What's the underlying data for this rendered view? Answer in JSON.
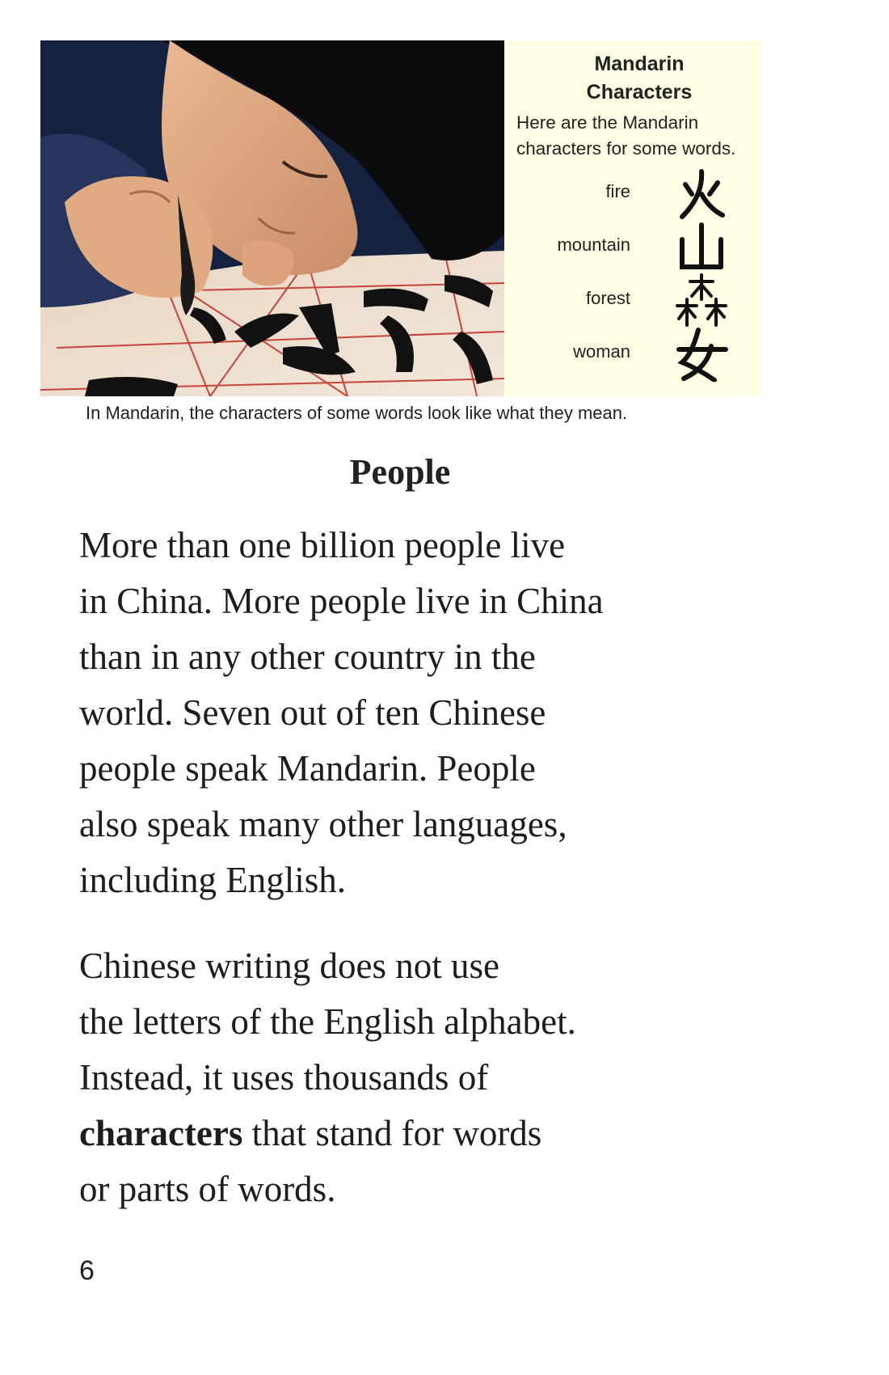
{
  "photo": {
    "icon": "calligraphy-photo"
  },
  "sidebar": {
    "title_line1": "Mandarin",
    "title_line2": "Characters",
    "intro_line1": "Here are the Mandarin",
    "intro_line2": "characters for some words.",
    "items": [
      {
        "word": "fire",
        "icon": "fire-character-icon"
      },
      {
        "word": "mountain",
        "icon": "mountain-character-icon"
      },
      {
        "word": "forest",
        "icon": "forest-character-icon"
      },
      {
        "word": "woman",
        "icon": "woman-character-icon"
      }
    ]
  },
  "caption": "In Mandarin, the characters of some words look like what they mean.",
  "heading": "People",
  "paragraph1": {
    "lines": [
      "More than one billion people live",
      "in China. More people live in China",
      "than in any other country in the",
      "world. Seven out of ten Chinese",
      "people speak Mandarin. People",
      "also speak many other languages,",
      "including English."
    ]
  },
  "paragraph2": {
    "line1": "Chinese writing does not use",
    "line2": "the letters of the English alphabet.",
    "line3": "Instead, it uses thousands of",
    "line4_bold": "characters",
    "line4_rest": " that stand for words",
    "line5": "or parts of words."
  },
  "page_number": "6"
}
